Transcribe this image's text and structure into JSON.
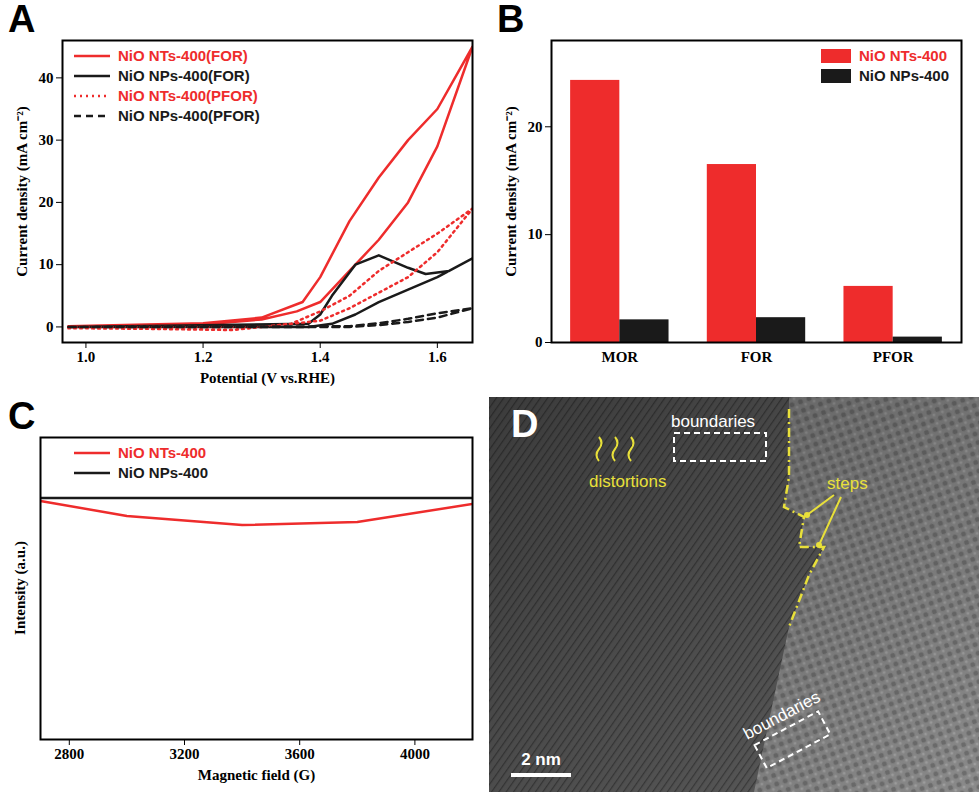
{
  "chart_data": [
    {
      "type": "line",
      "title": "A",
      "xlabel": "Potential (V vs.RHE)",
      "ylabel": "Current density (mA cm⁻²)",
      "xlim": [
        0.96,
        1.66
      ],
      "xticks": [
        {
          "value": 1,
          "label": "1.0"
        },
        1.2,
        1.4,
        1.6
      ],
      "ylim": [
        -2.5,
        46
      ],
      "yticks": [
        0,
        10,
        20,
        30,
        40
      ],
      "legend": "upper left",
      "series": [
        {
          "name": "NiO NTs-400(FOR)",
          "color": "#ee2c2c",
          "line_style": "solid",
          "x": [
            0.97,
            1.2,
            1.3,
            1.36,
            1.4,
            1.45,
            1.5,
            1.55,
            1.6,
            1.66,
            1.6,
            1.55,
            1.5,
            1.45,
            1.4,
            1.37,
            1.3,
            1.2,
            0.97
          ],
          "values": [
            0,
            0.4,
            1.2,
            2.5,
            4,
            9,
            14,
            20,
            29,
            45,
            35,
            30,
            24,
            17,
            8,
            4,
            1.5,
            0.6,
            0.1
          ]
        },
        {
          "name": "NiO NPs-400(FOR)",
          "color": "#1a1a1a",
          "line_style": "solid",
          "x": [
            0.97,
            1.38,
            1.42,
            1.46,
            1.5,
            1.55,
            1.6,
            1.66,
            1.62,
            1.58,
            1.55,
            1.5,
            1.46,
            1.42,
            1.4,
            1.38,
            0.97
          ],
          "values": [
            0,
            0,
            0.5,
            2,
            4,
            6,
            8,
            11,
            9,
            8.5,
            9.5,
            11.5,
            10,
            5,
            2,
            0.5,
            0
          ]
        },
        {
          "name": "NiO NTs-400(PFOR)",
          "color": "#ee2c2c",
          "line_style": "dotted",
          "x": [
            0.97,
            1.3,
            1.4,
            1.45,
            1.5,
            1.55,
            1.6,
            1.66,
            1.6,
            1.55,
            1.5,
            1.45,
            1.4,
            1.35,
            1.25,
            1.1,
            0.97
          ],
          "values": [
            0,
            0,
            1,
            3,
            5.5,
            8,
            12,
            19,
            15,
            12,
            9,
            5,
            2.5,
            0.5,
            -0.5,
            -0.3,
            -0.2
          ]
        },
        {
          "name": "NiO NPs-400(PFOR)",
          "color": "#1a1a1a",
          "line_style": "dashed",
          "x": [
            0.97,
            1.45,
            1.5,
            1.55,
            1.6,
            1.66,
            1.6,
            1.55,
            1.5,
            1.45,
            0.97
          ],
          "values": [
            0,
            0,
            0.3,
            0.8,
            1.5,
            3,
            2.2,
            1.3,
            0.6,
            0.1,
            0
          ]
        }
      ]
    },
    {
      "type": "bar",
      "title": "B",
      "ylabel": "Current density (mA cm⁻²)",
      "categories": [
        "MOR",
        "FOR",
        "PFOR"
      ],
      "ylim": [
        0,
        28
      ],
      "yticks": [
        0,
        10,
        20
      ],
      "legend": "upper right",
      "series": [
        {
          "name": "NiO NTs-400",
          "color": "#ee2c2c",
          "values": [
            24.3,
            16.5,
            5.2
          ]
        },
        {
          "name": "NiO NPs-400",
          "color": "#1a1a1a",
          "values": [
            2.1,
            2.3,
            0.5
          ]
        }
      ]
    },
    {
      "type": "line",
      "title": "C",
      "xlabel": "Magnetic field (G)",
      "ylabel": "Intensity (a.u.)",
      "xlim": [
        2700,
        4200
      ],
      "xticks": [
        2800,
        3200,
        3600,
        4000
      ],
      "ylim": [
        -4,
        1
      ],
      "tick_labels": "x",
      "legend": "upper left",
      "series": [
        {
          "name": "NiO NTs-400",
          "color": "#ee2c2c",
          "line_style": "solid",
          "x": [
            2700,
            3000,
            3400,
            3800,
            4200
          ],
          "values": [
            -0.05,
            -0.3,
            -0.45,
            -0.4,
            -0.1
          ]
        },
        {
          "name": "NiO NPs-400",
          "color": "#1a1a1a",
          "line_style": "solid",
          "x": [
            2700,
            4200
          ],
          "values": [
            0,
            0
          ]
        }
      ]
    },
    {
      "type": "image",
      "title": "D",
      "annotations": [
        "boundaries",
        "distortions",
        "steps",
        "boundaries"
      ],
      "scale_bar": "2 nm"
    }
  ]
}
